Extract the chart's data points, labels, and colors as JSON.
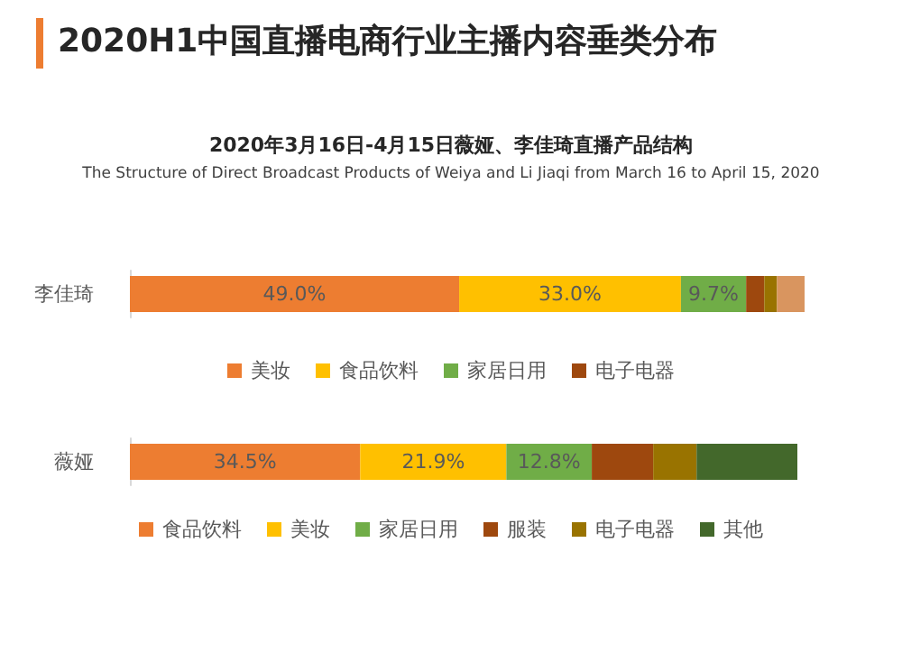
{
  "chart_data": [
    {
      "type": "bar",
      "orientation": "horizontal",
      "stacked": true,
      "title": "2020H1中国直播电商行业主播内容垂类分布",
      "subtitle": "2020年3月16日-4月15日薇娅、李佳琦直播产品结构",
      "annotations": [
        "The Structure of Direct Broadcast Products of Weiya and Li Jiaqi from March 16 to April 15, 2020"
      ],
      "categories": [
        "李佳琦"
      ],
      "legend": "bottom",
      "series": [
        {
          "name": "美妆",
          "color": "#ed7d31",
          "values": [
            49.0
          ],
          "value_labels": [
            "49.0%"
          ]
        },
        {
          "name": "食品饮料",
          "color": "#ffc000",
          "values": [
            33.0
          ],
          "value_labels": [
            "33.0%"
          ]
        },
        {
          "name": "家居日用",
          "color": "#70ad47",
          "values": [
            9.7
          ],
          "value_labels": [
            "9.7%"
          ]
        },
        {
          "name": "电子电器",
          "color": "#9e480e",
          "values": [
            2.7
          ]
        },
        {
          "color": "#997300",
          "values": [
            1.9
          ]
        },
        {
          "color": "#d9955f",
          "values": [
            4.1
          ]
        }
      ]
    },
    {
      "type": "bar",
      "orientation": "horizontal",
      "stacked": true,
      "categories": [
        "薇娅"
      ],
      "legend": "bottom",
      "series": [
        {
          "name": "食品饮料",
          "color": "#ed7d31",
          "values": [
            34.5
          ],
          "value_labels": [
            "34.5%"
          ]
        },
        {
          "name": "美妆",
          "color": "#ffc000",
          "values": [
            21.9
          ],
          "value_labels": [
            "21.9%"
          ]
        },
        {
          "name": "家居日用",
          "color": "#70ad47",
          "values": [
            12.8
          ],
          "value_labels": [
            "12.8%"
          ]
        },
        {
          "name": "服装",
          "color": "#9e480e",
          "values": [
            9.2
          ]
        },
        {
          "name": "电子电器",
          "color": "#997300",
          "values": [
            6.5
          ]
        },
        {
          "name": "其他",
          "color": "#43682b",
          "values": [
            15.1
          ]
        }
      ]
    }
  ]
}
